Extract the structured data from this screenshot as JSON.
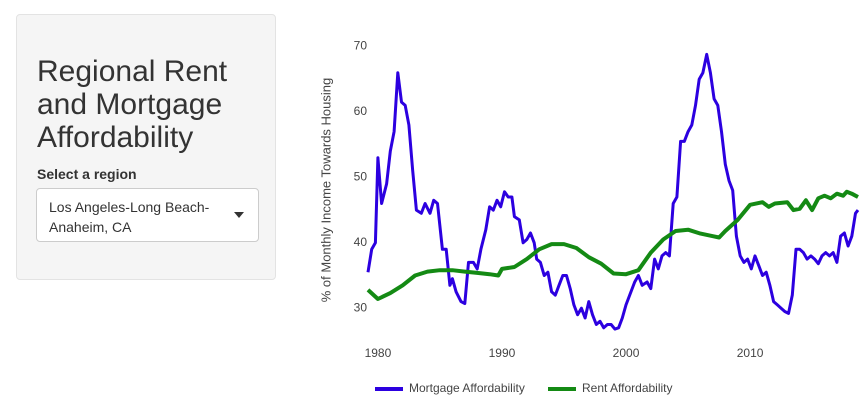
{
  "sidebar": {
    "title": "Regional Rent and Mortgage Affordability",
    "select_label": "Select a region",
    "selected_region": "Los Angeles-Long Beach-Anaheim, CA"
  },
  "chart_data": {
    "type": "line",
    "y_label": "% of Monthly Income Towards Housing",
    "xlim": [
      1979.2,
      2018.7
    ],
    "xticks": [
      1980,
      1990,
      2000,
      2010
    ],
    "ylim": [
      25.9,
      71
    ],
    "yticks": [
      30,
      40,
      50,
      60,
      70
    ],
    "grid": false,
    "legend": "bottom",
    "series": [
      {
        "name": "Mortgage Affordability",
        "color": "#2c00e0",
        "x": [
          1979.2,
          1979.5,
          1979.8,
          1980.0,
          1980.3,
          1980.7,
          1981.0,
          1981.3,
          1981.6,
          1981.9,
          1982.2,
          1982.5,
          1982.8,
          1983.1,
          1983.5,
          1983.8,
          1984.2,
          1984.5,
          1984.8,
          1985.2,
          1985.5,
          1985.8,
          1986.0,
          1986.3,
          1986.7,
          1987.0,
          1987.3,
          1987.7,
          1988.0,
          1988.3,
          1988.7,
          1989.0,
          1989.3,
          1989.6,
          1989.9,
          1990.2,
          1990.5,
          1990.8,
          1991.0,
          1991.4,
          1991.7,
          1992.0,
          1992.3,
          1992.6,
          1992.8,
          1993.1,
          1993.4,
          1993.7,
          1994.0,
          1994.3,
          1994.6,
          1994.9,
          1995.2,
          1995.5,
          1995.8,
          1996.1,
          1996.4,
          1996.7,
          1997.0,
          1997.3,
          1997.6,
          1997.9,
          1998.2,
          1998.5,
          1998.8,
          1999.1,
          1999.4,
          1999.7,
          2000.0,
          2000.3,
          2000.7,
          2001.0,
          2001.3,
          2001.7,
          2002.0,
          2002.3,
          2002.6,
          2002.9,
          2003.2,
          2003.5,
          2003.8,
          2004.1,
          2004.4,
          2004.7,
          2005.0,
          2005.3,
          2005.6,
          2005.9,
          2006.2,
          2006.5,
          2006.8,
          2007.1,
          2007.4,
          2007.7,
          2008.0,
          2008.3,
          2008.6,
          2008.9,
          2009.2,
          2009.5,
          2009.8,
          2010.1,
          2010.4,
          2010.7,
          2011.0,
          2011.3,
          2011.6,
          2011.9,
          2012.2,
          2012.5,
          2012.8,
          2013.1,
          2013.4,
          2013.7,
          2014.0,
          2014.3,
          2014.6,
          2014.9,
          2015.2,
          2015.5,
          2015.8,
          2016.1,
          2016.4,
          2016.7,
          2017.0,
          2017.3,
          2017.6,
          2017.9,
          2018.2,
          2018.5,
          2018.7
        ],
        "values": [
          35.5,
          39,
          40,
          53,
          46,
          49,
          54,
          57,
          66,
          61.5,
          61,
          58,
          51,
          45,
          44.5,
          46,
          44.5,
          46.5,
          46,
          39,
          39,
          33.5,
          34.5,
          32.5,
          31,
          30.7,
          37,
          37,
          36,
          39,
          42,
          45.5,
          45,
          46.5,
          45.5,
          47.8,
          47,
          47,
          44,
          43.5,
          40,
          40.5,
          41.5,
          40,
          37.5,
          37,
          35,
          35.5,
          32.5,
          32,
          33.5,
          35,
          35,
          33,
          30.5,
          29,
          30,
          28.5,
          31,
          29,
          27.5,
          28,
          27,
          27.5,
          27.5,
          26.8,
          27,
          28.5,
          30.5,
          32,
          34,
          35,
          33.5,
          34,
          33,
          37.5,
          36,
          38,
          38.5,
          38,
          46,
          47,
          55.5,
          55.5,
          57,
          58,
          61,
          65,
          66,
          68.8,
          66,
          62,
          61,
          57,
          52,
          49.5,
          48,
          41,
          38,
          37,
          37.5,
          36,
          38,
          36.5,
          35,
          35.5,
          33.5,
          31,
          30.5,
          30,
          29.5,
          29.2,
          32,
          39,
          39,
          38.5,
          37.5,
          38,
          37.5,
          36.8,
          38,
          38.5,
          38,
          38.5,
          37,
          41,
          41.5,
          39.5,
          41,
          44.5,
          45
        ]
      },
      {
        "name": "Rent Affordability",
        "color": "#148a14",
        "x": [
          1979.2,
          1980,
          1981,
          1982,
          1983,
          1984,
          1985,
          1986,
          1987,
          1988,
          1989,
          1989.7,
          1990,
          1991,
          1992,
          1993,
          1994,
          1995,
          1996,
          1997,
          1998,
          1999,
          2000,
          2001,
          2002,
          2003,
          2004,
          2005,
          2006,
          2007,
          2007.5,
          2008,
          2009,
          2010,
          2011,
          2011.5,
          2012,
          2013,
          2013.5,
          2014,
          2014.5,
          2015,
          2015.5,
          2016,
          2016.5,
          2017,
          2017.5,
          2017.8,
          2018.2,
          2018.7
        ],
        "values": [
          32.8,
          31.4,
          32.3,
          33.5,
          35,
          35.6,
          35.8,
          35.8,
          35.6,
          35.4,
          35.2,
          35,
          36,
          36.3,
          37.5,
          39,
          39.8,
          39.8,
          39.2,
          37.8,
          36.8,
          35.3,
          35.2,
          35.8,
          38.5,
          40.5,
          41.8,
          42,
          41.4,
          41,
          40.8,
          41.8,
          43.5,
          45.8,
          46.2,
          45.5,
          46,
          46.2,
          45,
          45.2,
          46.5,
          45,
          46.8,
          47.2,
          46.8,
          47.5,
          47.2,
          47.8,
          47.5,
          47
        ]
      }
    ]
  }
}
